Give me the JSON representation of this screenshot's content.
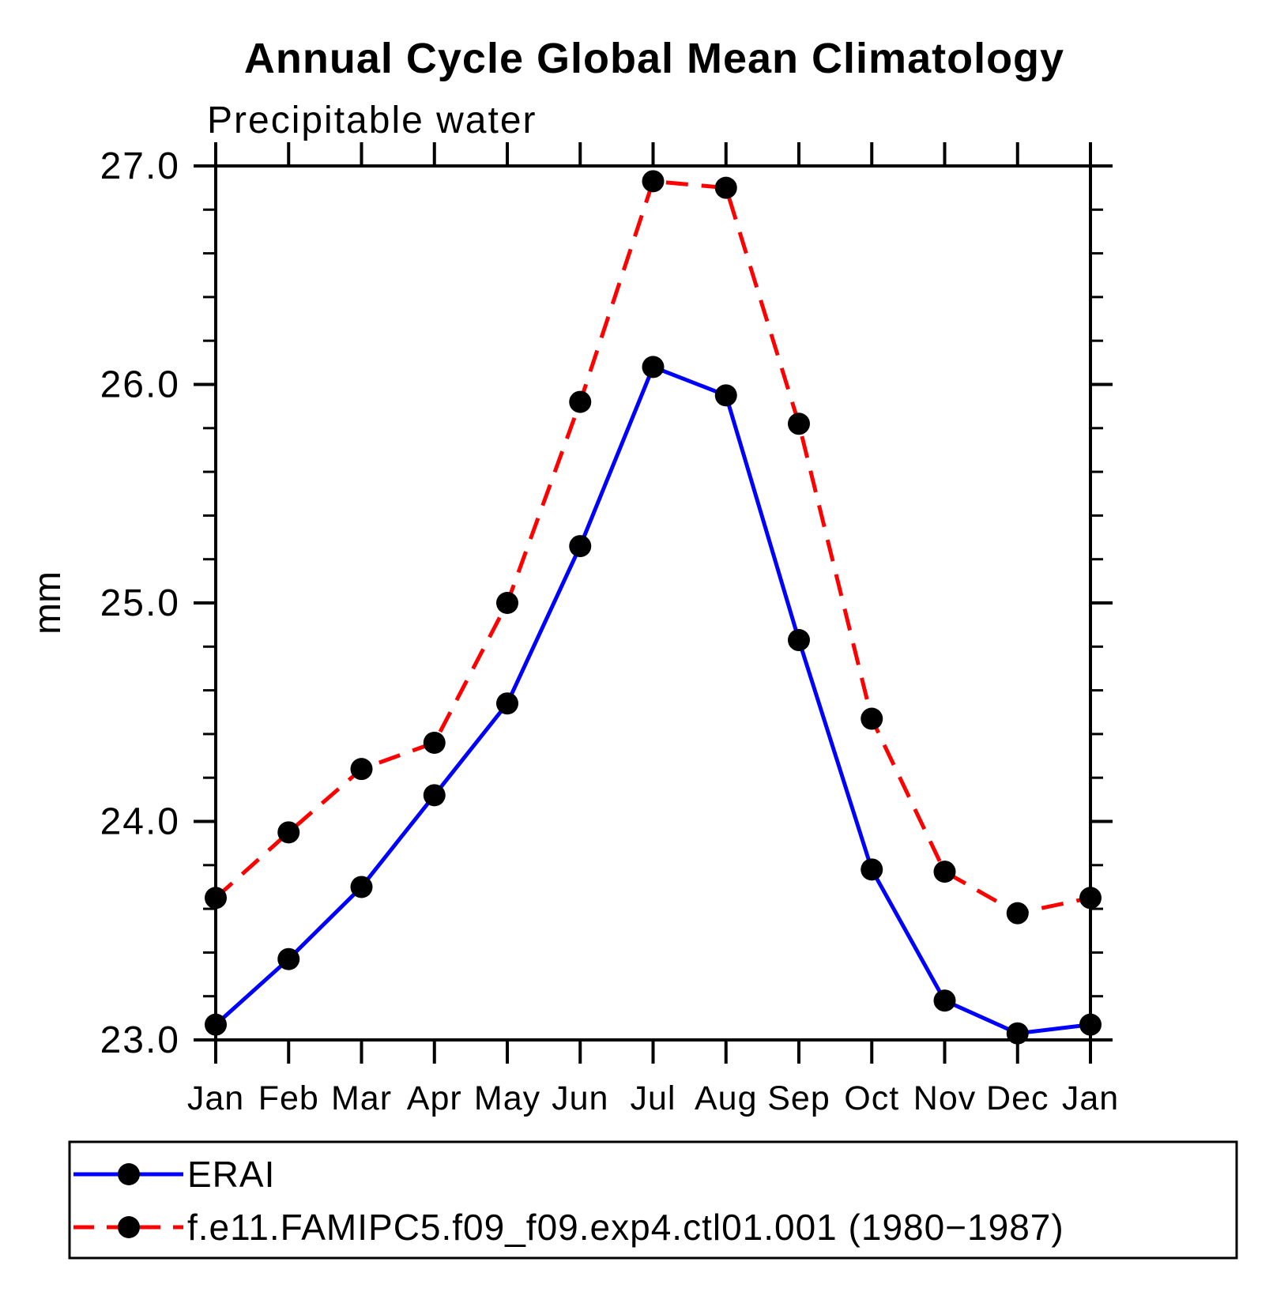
{
  "chart_data": {
    "type": "line",
    "title": "Annual Cycle Global Mean Climatology",
    "subtitle": "Precipitable water",
    "ylabel": "mm",
    "xlabel": "",
    "categories": [
      "Jan",
      "Feb",
      "Mar",
      "Apr",
      "May",
      "Jun",
      "Jul",
      "Aug",
      "Sep",
      "Oct",
      "Nov",
      "Dec",
      "Jan"
    ],
    "ylim": [
      23.0,
      27.0
    ],
    "ytick_major_step": 1.0,
    "ytick_minor_step": 0.2,
    "ytick_labels": [
      "23.0",
      "24.0",
      "25.0",
      "26.0",
      "27.0"
    ],
    "grid": false,
    "legend_position": "bottom",
    "marker": {
      "shape": "circle",
      "color": "#000000"
    },
    "series": [
      {
        "name": "ERAI",
        "color": "#0000ff",
        "line_style": "solid",
        "values": [
          23.07,
          23.37,
          23.7,
          24.12,
          24.54,
          25.26,
          26.08,
          25.95,
          24.83,
          23.78,
          23.18,
          23.03,
          23.07
        ]
      },
      {
        "name": "f.e11.FAMIPC5.f09_f09.exp4.ctl01.001 (1980−1987)",
        "color": "#ff0000",
        "line_style": "dashed",
        "values": [
          23.65,
          23.95,
          24.24,
          24.36,
          25.0,
          25.92,
          26.93,
          26.9,
          25.82,
          24.47,
          23.77,
          23.58,
          23.65
        ]
      }
    ]
  }
}
